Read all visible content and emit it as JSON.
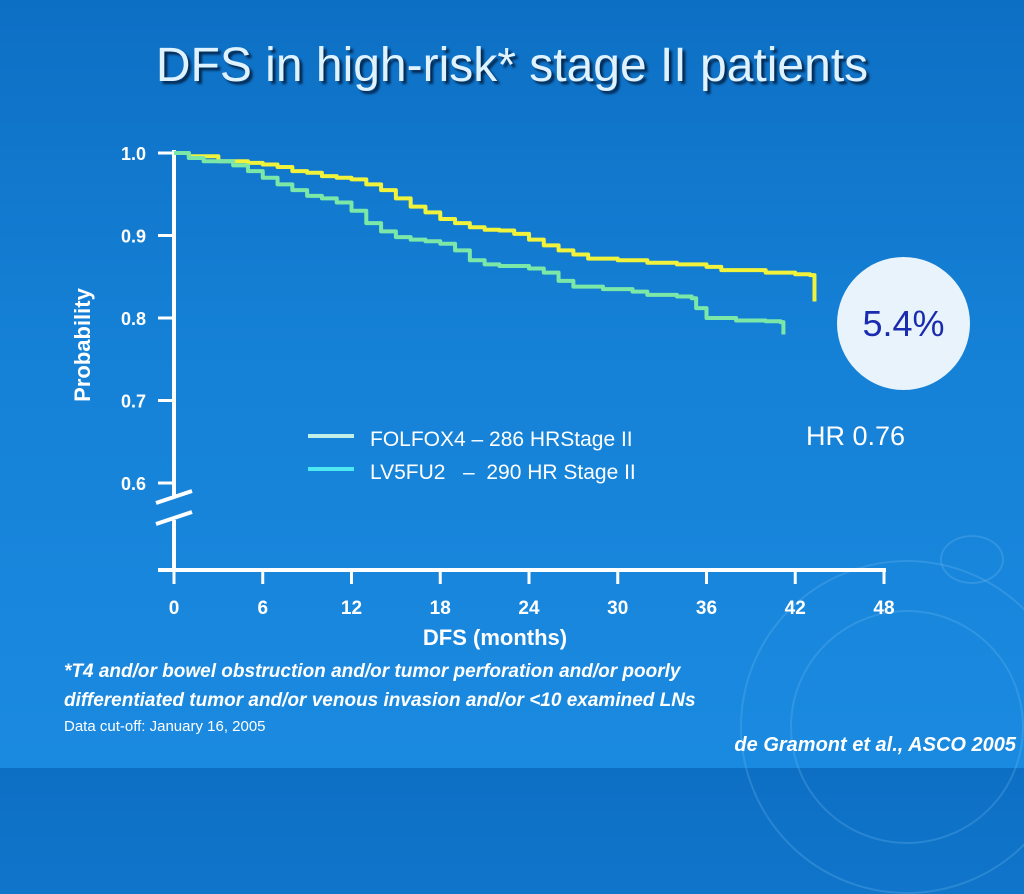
{
  "slide": {
    "title": "DFS in high-risk* stage II patients",
    "footnote_line1": "*T4 and/or bowel obstruction and/or tumor perforation and/or poorly",
    "footnote_line2": "differentiated tumor and/or venous invasion and/or <10 examined LNs",
    "cutoff": "Data cut-off: January 16, 2005",
    "citation": "de Gramont et al., ASCO 2005",
    "callout_value": "5.4%",
    "hr_text": "HR 0.76"
  },
  "chart_data": {
    "type": "line",
    "subtype": "kaplan-meier step curve",
    "xlabel": "DFS (months)",
    "ylabel": "Probability",
    "x_ticks": [
      0,
      6,
      12,
      18,
      24,
      30,
      36,
      42,
      48
    ],
    "y_ticks": [
      "0.6",
      "0.7",
      "0.8",
      "0.9",
      "1.0"
    ],
    "xlim": [
      0,
      48
    ],
    "ylim": [
      0.6,
      1.0
    ],
    "axis_break": true,
    "grid": false,
    "legend_position": "center-right",
    "series": [
      {
        "name": "FOLFOX4 – 286 HRStage II",
        "color": "#f0f23c",
        "points": [
          [
            0,
            1.0
          ],
          [
            1,
            0.996
          ],
          [
            3,
            0.99
          ],
          [
            5,
            0.988
          ],
          [
            6,
            0.986
          ],
          [
            7,
            0.983
          ],
          [
            8,
            0.978
          ],
          [
            9,
            0.976
          ],
          [
            10,
            0.972
          ],
          [
            11,
            0.97
          ],
          [
            12,
            0.968
          ],
          [
            13,
            0.962
          ],
          [
            14,
            0.955
          ],
          [
            15,
            0.945
          ],
          [
            16,
            0.935
          ],
          [
            17,
            0.928
          ],
          [
            18,
            0.92
          ],
          [
            19,
            0.915
          ],
          [
            20,
            0.91
          ],
          [
            21,
            0.907
          ],
          [
            22,
            0.906
          ],
          [
            23,
            0.902
          ],
          [
            24,
            0.895
          ],
          [
            25,
            0.888
          ],
          [
            26,
            0.882
          ],
          [
            27,
            0.877
          ],
          [
            28,
            0.872
          ],
          [
            30,
            0.87
          ],
          [
            32,
            0.867
          ],
          [
            34,
            0.865
          ],
          [
            36,
            0.862
          ],
          [
            37,
            0.858
          ],
          [
            40,
            0.855
          ],
          [
            42,
            0.853
          ],
          [
            43,
            0.852
          ],
          [
            43.3,
            0.85
          ],
          [
            43.3,
            0.82
          ]
        ]
      },
      {
        "name": "LV5FU2   –  290 HR Stage II",
        "color": "#7ce8a8",
        "points": [
          [
            0,
            1.0
          ],
          [
            1,
            0.994
          ],
          [
            2,
            0.99
          ],
          [
            4,
            0.985
          ],
          [
            5,
            0.978
          ],
          [
            6,
            0.97
          ],
          [
            7,
            0.962
          ],
          [
            8,
            0.955
          ],
          [
            9,
            0.948
          ],
          [
            10,
            0.945
          ],
          [
            11,
            0.94
          ],
          [
            12,
            0.93
          ],
          [
            13,
            0.915
          ],
          [
            14,
            0.905
          ],
          [
            15,
            0.898
          ],
          [
            16,
            0.895
          ],
          [
            17,
            0.893
          ],
          [
            18,
            0.89
          ],
          [
            19,
            0.882
          ],
          [
            20,
            0.87
          ],
          [
            21,
            0.865
          ],
          [
            22,
            0.863
          ],
          [
            24,
            0.86
          ],
          [
            25,
            0.855
          ],
          [
            26,
            0.845
          ],
          [
            27,
            0.838
          ],
          [
            29,
            0.835
          ],
          [
            31,
            0.832
          ],
          [
            32,
            0.828
          ],
          [
            34,
            0.826
          ],
          [
            35,
            0.824
          ],
          [
            35.3,
            0.812
          ],
          [
            36,
            0.8
          ],
          [
            38,
            0.797
          ],
          [
            40,
            0.796
          ],
          [
            41,
            0.795
          ],
          [
            41.2,
            0.795
          ],
          [
            41.2,
            0.78
          ]
        ]
      }
    ]
  }
}
